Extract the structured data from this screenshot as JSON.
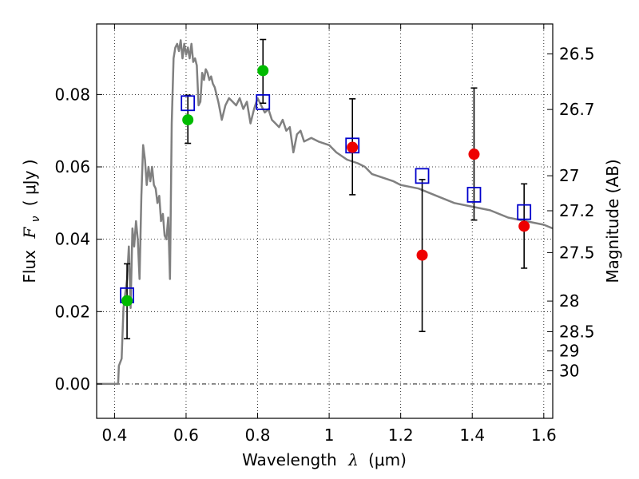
{
  "chart_data": {
    "type": "scatter",
    "title": "",
    "xlabel": "Wavelength",
    "xlabel_symbol": "λ",
    "xlabel_unit": "(μm)",
    "ylabel": "Flux",
    "ylabel_symbol": "F",
    "ylabel_subscript": "ν",
    "ylabel_unit": "( μJy )",
    "y2label": "Magnitude (AB)",
    "xlim": [
      0.35,
      1.625
    ],
    "ylim": [
      -0.0095,
      0.0995
    ],
    "grid": true,
    "x_ticks": [
      0.4,
      0.6,
      0.8,
      1.0,
      1.2,
      1.4,
      1.6
    ],
    "x_tick_labels": [
      "0.4",
      "0.6",
      "0.8",
      "1",
      "1.2",
      "1.4",
      "1.6"
    ],
    "y_ticks": [
      0.0,
      0.02,
      0.04,
      0.06,
      0.08
    ],
    "y_tick_labels": [
      "0.00",
      "0.02",
      "0.04",
      "0.06",
      "0.08"
    ],
    "y2_ticks": [
      26.5,
      26.7,
      27,
      27.2,
      27.5,
      28,
      28.5,
      29,
      30
    ],
    "y2_tick_labels": [
      "26.5",
      "26.7",
      "27",
      "27.2",
      "27.5",
      "28",
      "28.5",
      "29",
      "30"
    ],
    "colors": {
      "model": "#808080",
      "model_photometry": "#0000cc",
      "detection": "#00bb00",
      "observed": "#ee0000",
      "errorbar": "#000000",
      "zero_line": "#000000"
    },
    "series": [
      {
        "name": "model_sed",
        "style": "line",
        "x": [
          0.35,
          0.41,
          0.412,
          0.42,
          0.425,
          0.43,
          0.435,
          0.44,
          0.445,
          0.45,
          0.455,
          0.46,
          0.465,
          0.47,
          0.475,
          0.48,
          0.485,
          0.49,
          0.495,
          0.5,
          0.505,
          0.51,
          0.515,
          0.52,
          0.525,
          0.53,
          0.535,
          0.54,
          0.545,
          0.55,
          0.555,
          0.56,
          0.565,
          0.57,
          0.575,
          0.58,
          0.585,
          0.59,
          0.595,
          0.6,
          0.605,
          0.61,
          0.615,
          0.62,
          0.625,
          0.63,
          0.635,
          0.64,
          0.645,
          0.65,
          0.655,
          0.66,
          0.665,
          0.67,
          0.675,
          0.68,
          0.69,
          0.7,
          0.71,
          0.72,
          0.73,
          0.74,
          0.75,
          0.76,
          0.77,
          0.78,
          0.79,
          0.8,
          0.81,
          0.82,
          0.83,
          0.84,
          0.85,
          0.86,
          0.87,
          0.88,
          0.89,
          0.9,
          0.91,
          0.92,
          0.93,
          0.95,
          0.97,
          1.0,
          1.02,
          1.05,
          1.08,
          1.1,
          1.12,
          1.15,
          1.18,
          1.2,
          1.25,
          1.3,
          1.35,
          1.4,
          1.45,
          1.5,
          1.55,
          1.6,
          1.625
        ],
        "y": [
          0.0,
          0.0,
          0.005,
          0.007,
          0.021,
          0.025,
          0.029,
          0.038,
          0.021,
          0.043,
          0.038,
          0.045,
          0.04,
          0.029,
          0.052,
          0.066,
          0.062,
          0.055,
          0.06,
          0.056,
          0.06,
          0.055,
          0.054,
          0.05,
          0.052,
          0.045,
          0.047,
          0.041,
          0.04,
          0.046,
          0.029,
          0.072,
          0.09,
          0.093,
          0.094,
          0.092,
          0.095,
          0.09,
          0.094,
          0.091,
          0.093,
          0.09,
          0.094,
          0.089,
          0.09,
          0.088,
          0.077,
          0.078,
          0.086,
          0.084,
          0.087,
          0.086,
          0.084,
          0.085,
          0.083,
          0.082,
          0.078,
          0.073,
          0.077,
          0.079,
          0.078,
          0.077,
          0.079,
          0.076,
          0.078,
          0.072,
          0.076,
          0.079,
          0.077,
          0.075,
          0.076,
          0.073,
          0.072,
          0.071,
          0.073,
          0.07,
          0.071,
          0.064,
          0.069,
          0.07,
          0.067,
          0.068,
          0.067,
          0.066,
          0.064,
          0.062,
          0.061,
          0.06,
          0.058,
          0.057,
          0.056,
          0.055,
          0.054,
          0.052,
          0.05,
          0.049,
          0.048,
          0.046,
          0.045,
          0.044,
          0.043
        ]
      },
      {
        "name": "model_photometry",
        "style": "open_square",
        "x": [
          0.435,
          0.605,
          0.815,
          1.065,
          1.26,
          1.405,
          1.545
        ],
        "y": [
          0.0245,
          0.0776,
          0.0779,
          0.0659,
          0.0575,
          0.0523,
          0.0475
        ]
      },
      {
        "name": "detections",
        "style": "filled_circle",
        "x": [
          0.435,
          0.605,
          0.815
        ],
        "y": [
          0.023,
          0.073,
          0.0866
        ]
      },
      {
        "name": "observed",
        "style": "filled_circle",
        "x": [
          1.065,
          1.26,
          1.405,
          1.545
        ],
        "y": [
          0.0654,
          0.0356,
          0.0635,
          0.0436
        ]
      },
      {
        "name": "error_bars",
        "style": "errorbar",
        "x": [
          0.435,
          0.605,
          0.815,
          1.065,
          1.26,
          1.405,
          1.545
        ],
        "low": [
          0.0125,
          0.0665,
          0.0776,
          0.0523,
          0.0145,
          0.0453,
          0.032
        ],
        "high": [
          0.0332,
          0.0798,
          0.0952,
          0.0788,
          0.0565,
          0.0818,
          0.0553
        ]
      }
    ]
  }
}
